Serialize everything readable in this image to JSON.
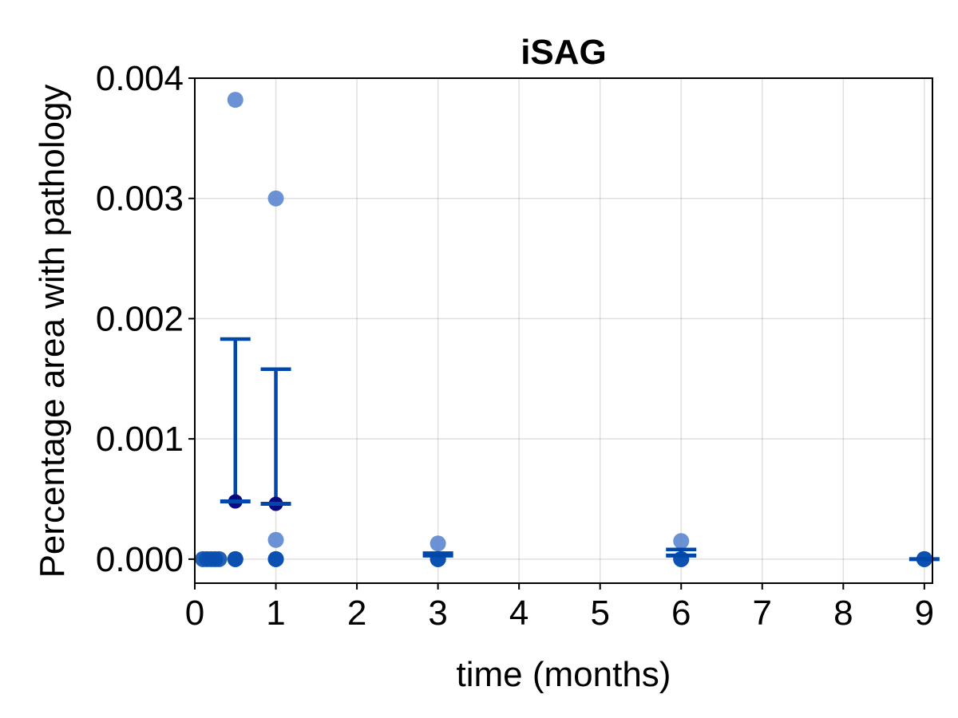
{
  "chart_data": {
    "type": "scatter",
    "title": "iSAG",
    "xlabel": "time (months)",
    "ylabel": "Percentage area with pathology",
    "xlim": [
      0,
      9.1
    ],
    "ylim": [
      -0.0002,
      0.004
    ],
    "xticks": [
      "0",
      "1",
      "2",
      "3",
      "4",
      "5",
      "6",
      "7",
      "8",
      "9"
    ],
    "yticks": [
      "0.000",
      "0.001",
      "0.002",
      "0.003",
      "0.004"
    ],
    "grid": true,
    "legend": "none",
    "colors": {
      "individual_points": "#5b86cf",
      "summary": "#0047ab",
      "mean_marker": "#0a0a80",
      "zero_points": "#0a4fb0"
    },
    "individual_points": [
      {
        "x": 0.1,
        "y": 0.0
      },
      {
        "x": 0.15,
        "y": 0.0
      },
      {
        "x": 0.2,
        "y": 0.0
      },
      {
        "x": 0.25,
        "y": 0.0
      },
      {
        "x": 0.3,
        "y": 0.0
      },
      {
        "x": 0.5,
        "y": 0.00382
      },
      {
        "x": 0.5,
        "y": 0.0
      },
      {
        "x": 0.5,
        "y": 0.0
      },
      {
        "x": 1,
        "y": 0.003
      },
      {
        "x": 1,
        "y": 0.00016
      },
      {
        "x": 1,
        "y": 0.0
      },
      {
        "x": 1,
        "y": 0.0
      },
      {
        "x": 3,
        "y": 0.00013
      },
      {
        "x": 3,
        "y": 0.0
      },
      {
        "x": 3,
        "y": 0.0
      },
      {
        "x": 6,
        "y": 0.00015
      },
      {
        "x": 6,
        "y": 0.0
      },
      {
        "x": 6,
        "y": 0.0
      },
      {
        "x": 9,
        "y": 0.0
      },
      {
        "x": 9,
        "y": 0.0
      }
    ],
    "summary": [
      {
        "x": 0.5,
        "mean": 0.00048,
        "upper": 0.00183
      },
      {
        "x": 1,
        "mean": 0.00046,
        "upper": 0.00158
      },
      {
        "x": 3,
        "mean": 3e-05,
        "upper": 5e-05
      },
      {
        "x": 6,
        "mean": 3e-05,
        "upper": 8e-05
      },
      {
        "x": 9,
        "mean": 0.0,
        "upper": 0.0
      }
    ]
  }
}
